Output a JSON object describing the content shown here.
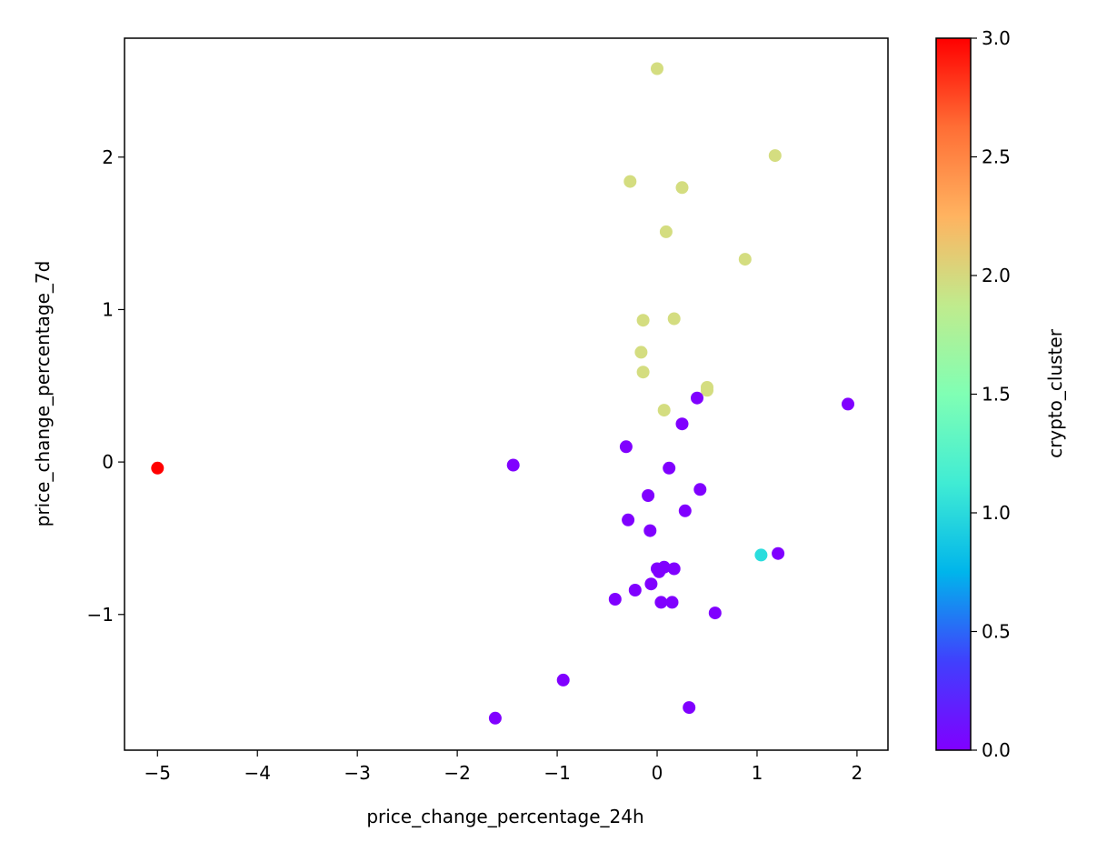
{
  "chart_data": {
    "type": "scatter",
    "title": "",
    "xlabel": "price_change_percentage_24h",
    "ylabel": "price_change_percentage_7d",
    "xlim": [
      -5.33,
      2.31
    ],
    "ylim": [
      -1.89,
      2.78
    ],
    "xticks": [
      -5,
      -4,
      -3,
      -2,
      -1,
      0,
      1,
      2
    ],
    "yticks": [
      -1,
      0,
      1,
      2
    ],
    "grid": false,
    "colorbar": {
      "label": "crypto_cluster",
      "colormap": "rainbow",
      "min": 0.0,
      "max": 3.0,
      "ticks": [
        0.0,
        0.5,
        1.0,
        1.5,
        2.0,
        2.5,
        3.0
      ],
      "tick_labels": [
        "0.0",
        "0.5",
        "1.0",
        "1.5",
        "2.0",
        "2.5",
        "3.0"
      ]
    },
    "points": [
      {
        "x": 0.0,
        "y": 2.58,
        "cluster": 2
      },
      {
        "x": 1.18,
        "y": 2.01,
        "cluster": 2
      },
      {
        "x": -0.27,
        "y": 1.84,
        "cluster": 2
      },
      {
        "x": 0.25,
        "y": 1.8,
        "cluster": 2
      },
      {
        "x": 0.09,
        "y": 1.51,
        "cluster": 2
      },
      {
        "x": 0.88,
        "y": 1.33,
        "cluster": 2
      },
      {
        "x": -0.14,
        "y": 0.93,
        "cluster": 2
      },
      {
        "x": 0.17,
        "y": 0.94,
        "cluster": 2
      },
      {
        "x": -0.16,
        "y": 0.72,
        "cluster": 2
      },
      {
        "x": -0.14,
        "y": 0.59,
        "cluster": 2
      },
      {
        "x": 0.5,
        "y": 0.49,
        "cluster": 2
      },
      {
        "x": 0.5,
        "y": 0.47,
        "cluster": 2
      },
      {
        "x": 0.07,
        "y": 0.34,
        "cluster": 2
      },
      {
        "x": 0.4,
        "y": 0.42,
        "cluster": 0
      },
      {
        "x": 1.91,
        "y": 0.38,
        "cluster": 0
      },
      {
        "x": 0.25,
        "y": 0.25,
        "cluster": 0
      },
      {
        "x": -0.31,
        "y": 0.1,
        "cluster": 0
      },
      {
        "x": -1.44,
        "y": -0.02,
        "cluster": 0
      },
      {
        "x": 0.12,
        "y": -0.04,
        "cluster": 0
      },
      {
        "x": 0.43,
        "y": -0.18,
        "cluster": 0
      },
      {
        "x": -0.09,
        "y": -0.22,
        "cluster": 0
      },
      {
        "x": 0.28,
        "y": -0.32,
        "cluster": 0
      },
      {
        "x": -0.29,
        "y": -0.38,
        "cluster": 0
      },
      {
        "x": -0.07,
        "y": -0.45,
        "cluster": 0
      },
      {
        "x": 1.21,
        "y": -0.6,
        "cluster": 0
      },
      {
        "x": 0.0,
        "y": -0.7,
        "cluster": 0
      },
      {
        "x": 0.07,
        "y": -0.69,
        "cluster": 0
      },
      {
        "x": 0.17,
        "y": -0.7,
        "cluster": 0
      },
      {
        "x": 0.02,
        "y": -0.72,
        "cluster": 0
      },
      {
        "x": -0.06,
        "y": -0.8,
        "cluster": 0
      },
      {
        "x": -0.22,
        "y": -0.84,
        "cluster": 0
      },
      {
        "x": -0.42,
        "y": -0.9,
        "cluster": 0
      },
      {
        "x": 0.04,
        "y": -0.92,
        "cluster": 0
      },
      {
        "x": 0.15,
        "y": -0.92,
        "cluster": 0
      },
      {
        "x": 0.58,
        "y": -0.99,
        "cluster": 0
      },
      {
        "x": -0.94,
        "y": -1.43,
        "cluster": 0
      },
      {
        "x": 0.32,
        "y": -1.61,
        "cluster": 0
      },
      {
        "x": -1.62,
        "y": -1.68,
        "cluster": 0
      },
      {
        "x": 1.04,
        "y": -0.61,
        "cluster": 1
      },
      {
        "x": -5.0,
        "y": -0.04,
        "cluster": 3
      }
    ]
  }
}
